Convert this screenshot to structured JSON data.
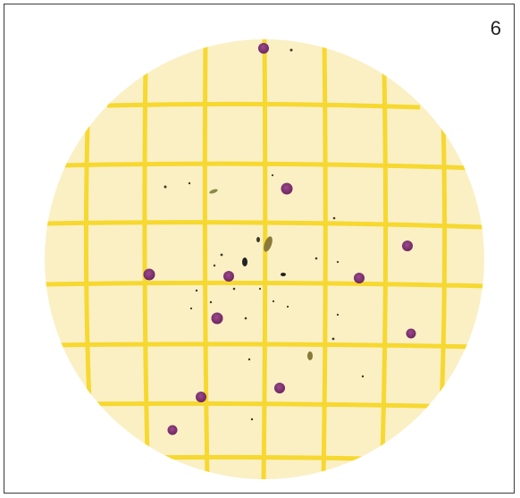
{
  "figure": {
    "panel_number": "6"
  },
  "plate": {
    "background_color": "#faf0c4",
    "grid_color": "#f6d830",
    "colony_color": "#7a2f6c",
    "colony_count": 12,
    "debris_color": "#4a4a2a"
  }
}
